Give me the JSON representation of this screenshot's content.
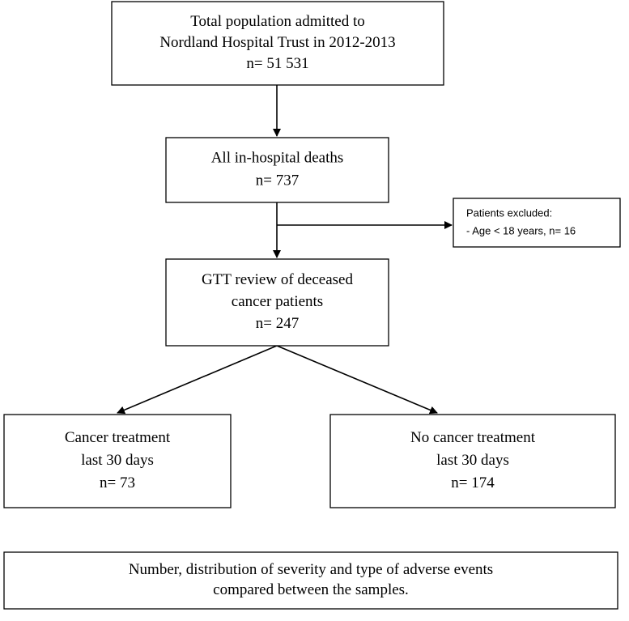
{
  "nodes": [
    {
      "lines": [
        "Total population admitted to",
        "Nordland Hospital Trust in 2012-2013",
        "n= 51 531"
      ]
    },
    {
      "lines": [
        "All in-hospital deaths",
        "n= 737"
      ]
    },
    {
      "lines": [
        "Patients excluded:",
        "- Age < 18 years, n= 16"
      ]
    },
    {
      "lines": [
        "GTT review of deceased",
        "cancer patients",
        "n= 247"
      ]
    },
    {
      "lines": [
        "Cancer treatment",
        "last 30 days",
        "n= 73"
      ]
    },
    {
      "lines": [
        "No cancer treatment",
        "last 30 days",
        "n= 174"
      ]
    },
    {
      "lines": [
        "Number, distribution of severity and type of adverse events",
        "compared between the samples."
      ]
    }
  ]
}
